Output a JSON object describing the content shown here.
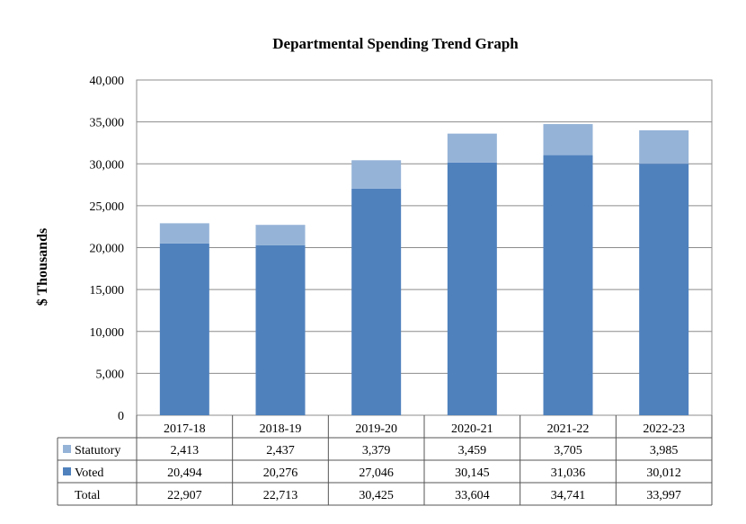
{
  "chart_data": {
    "type": "bar",
    "stacked": true,
    "title": "Departmental Spending Trend Graph",
    "ylabel": "$ Thousands",
    "xlabel": "",
    "ylim": [
      0,
      40000
    ],
    "yticks": [
      0,
      5000,
      10000,
      15000,
      20000,
      25000,
      30000,
      35000,
      40000
    ],
    "ytick_labels": [
      "0",
      "5,000",
      "10,000",
      "15,000",
      "20,000",
      "25,000",
      "30,000",
      "35,000",
      "40,000"
    ],
    "grid": true,
    "categories": [
      "2017-18",
      "2018-19",
      "2019-20",
      "2020-21",
      "2021-22",
      "2022-23"
    ],
    "series": [
      {
        "name": "Voted",
        "color": "#4f81bd",
        "values": [
          20494,
          20276,
          27046,
          30145,
          31036,
          30012
        ],
        "labels": [
          "20,494",
          "20,276",
          "27,046",
          "30,145",
          "31,036",
          "30,012"
        ]
      },
      {
        "name": "Statutory",
        "color": "#95b3d7",
        "values": [
          2413,
          2437,
          3379,
          3459,
          3705,
          3985
        ],
        "labels": [
          "2,413",
          "2,437",
          "3,379",
          "3,459",
          "3,705",
          "3,985"
        ]
      }
    ],
    "table": {
      "rows": [
        {
          "name": "Statutory",
          "swatch": "#95b3d7",
          "cells": [
            "2,413",
            "2,437",
            "3,379",
            "3,459",
            "3,705",
            "3,985"
          ]
        },
        {
          "name": "Voted",
          "swatch": "#4f81bd",
          "cells": [
            "20,494",
            "20,276",
            "27,046",
            "30,145",
            "31,036",
            "30,012"
          ]
        },
        {
          "name": "Total",
          "swatch": null,
          "cells": [
            "22,907",
            "22,713",
            "30,425",
            "33,604",
            "34,741",
            "33,997"
          ]
        }
      ]
    }
  }
}
